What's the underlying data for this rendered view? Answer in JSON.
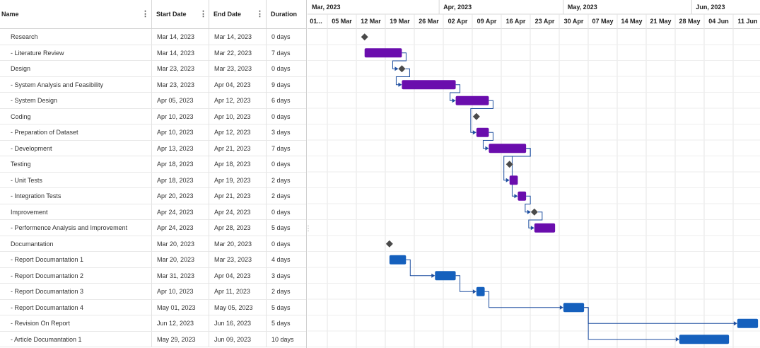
{
  "columns": {
    "name": "Name",
    "start": "Start Date",
    "end": "End Date",
    "duration": "Duration"
  },
  "menu_icon": "kebab-vertical-icon",
  "months": [
    "Mar, 2023",
    "Apr, 2023",
    "May, 2023",
    "Jun, 2023"
  ],
  "weeks": [
    "01...",
    "05 Mar",
    "12 Mar",
    "19 Mar",
    "26 Mar",
    "02 Apr",
    "09 Apr",
    "16 Apr",
    "23 Apr",
    "30 Apr",
    "07 May",
    "14 May",
    "21 May",
    "28 May",
    "04 Jun",
    "11 Jun"
  ],
  "colors": {
    "phase_bar": "#6a0dad",
    "doc_bar": "#1560bd",
    "milestone": "#4a4a4a",
    "connector": "#1f4fa0"
  },
  "tasks": [
    {
      "name": "Research",
      "start": "Mar 14, 2023",
      "end": "Mar 14, 2023",
      "duration": "0 days",
      "kind": "milestone",
      "group": "phase",
      "level": 0
    },
    {
      "name": "- Literature Review",
      "start": "Mar 14, 2023",
      "end": "Mar 22, 2023",
      "duration": "7 days",
      "kind": "bar",
      "group": "phase",
      "level": 1
    },
    {
      "name": "Design",
      "start": "Mar 23, 2023",
      "end": "Mar 23, 2023",
      "duration": "0 days",
      "kind": "milestone",
      "group": "phase",
      "level": 0
    },
    {
      "name": "- System Analysis and Feasibility",
      "start": "Mar 23, 2023",
      "end": "Apr 04, 2023",
      "duration": "9 days",
      "kind": "bar",
      "group": "phase",
      "level": 1
    },
    {
      "name": "- System Design",
      "start": "Apr 05, 2023",
      "end": "Apr 12, 2023",
      "duration": "6 days",
      "kind": "bar",
      "group": "phase",
      "level": 1
    },
    {
      "name": "Coding",
      "start": "Apr 10, 2023",
      "end": "Apr 10, 2023",
      "duration": "0 days",
      "kind": "milestone",
      "group": "phase",
      "level": 0
    },
    {
      "name": "- Preparation of Dataset",
      "start": "Apr 10, 2023",
      "end": "Apr 12, 2023",
      "duration": "3 days",
      "kind": "bar",
      "group": "phase",
      "level": 1
    },
    {
      "name": "- Development",
      "start": "Apr 13, 2023",
      "end": "Apr 21, 2023",
      "duration": "7 days",
      "kind": "bar",
      "group": "phase",
      "level": 1
    },
    {
      "name": "Testing",
      "start": "Apr 18, 2023",
      "end": "Apr 18, 2023",
      "duration": "0 days",
      "kind": "milestone",
      "group": "phase",
      "level": 0
    },
    {
      "name": "- Unit Tests",
      "start": "Apr 18, 2023",
      "end": "Apr 19, 2023",
      "duration": "2 days",
      "kind": "bar",
      "group": "phase",
      "level": 1
    },
    {
      "name": "- Integration Tests",
      "start": "Apr 20, 2023",
      "end": "Apr 21, 2023",
      "duration": "2 days",
      "kind": "bar",
      "group": "phase",
      "level": 1
    },
    {
      "name": "Improvement",
      "start": "Apr 24, 2023",
      "end": "Apr 24, 2023",
      "duration": "0 days",
      "kind": "milestone",
      "group": "phase",
      "level": 0
    },
    {
      "name": "- Performence Analysis and Improvement",
      "start": "Apr 24, 2023",
      "end": "Apr 28, 2023",
      "duration": "5 days",
      "kind": "bar",
      "group": "phase",
      "level": 1
    },
    {
      "name": "Documantation",
      "start": "Mar 20, 2023",
      "end": "Mar 20, 2023",
      "duration": "0 days",
      "kind": "milestone",
      "group": "doc",
      "level": 0
    },
    {
      "name": "- Report Documantation 1",
      "start": "Mar 20, 2023",
      "end": "Mar 23, 2023",
      "duration": "4 days",
      "kind": "bar",
      "group": "doc",
      "level": 1
    },
    {
      "name": "- Report Documantation 2",
      "start": "Mar 31, 2023",
      "end": "Apr 04, 2023",
      "duration": "3 days",
      "kind": "bar",
      "group": "doc",
      "level": 1
    },
    {
      "name": "- Report Documantation 3",
      "start": "Apr 10, 2023",
      "end": "Apr 11, 2023",
      "duration": "2 days",
      "kind": "bar",
      "group": "doc",
      "level": 1
    },
    {
      "name": "- Report Documantation 4",
      "start": "May 01, 2023",
      "end": "May 05, 2023",
      "duration": "5 days",
      "kind": "bar",
      "group": "doc",
      "level": 1
    },
    {
      "name": "- Revision On Report",
      "start": "Jun 12, 2023",
      "end": "Jun 16, 2023",
      "duration": "5 days",
      "kind": "bar",
      "group": "doc",
      "level": 1
    },
    {
      "name": "- Article Documantation 1",
      "start": "May 29, 2023",
      "end": "Jun 09, 2023",
      "duration": "10 days",
      "kind": "bar",
      "group": "doc",
      "level": 1
    }
  ],
  "dependencies": [
    [
      1,
      2
    ],
    [
      2,
      3
    ],
    [
      3,
      4
    ],
    [
      4,
      6
    ],
    [
      6,
      7
    ],
    [
      7,
      9
    ],
    [
      7,
      10
    ],
    [
      10,
      11
    ],
    [
      11,
      12
    ],
    [
      14,
      15
    ],
    [
      15,
      16
    ],
    [
      16,
      17
    ],
    [
      17,
      18
    ],
    [
      17,
      19
    ]
  ]
}
